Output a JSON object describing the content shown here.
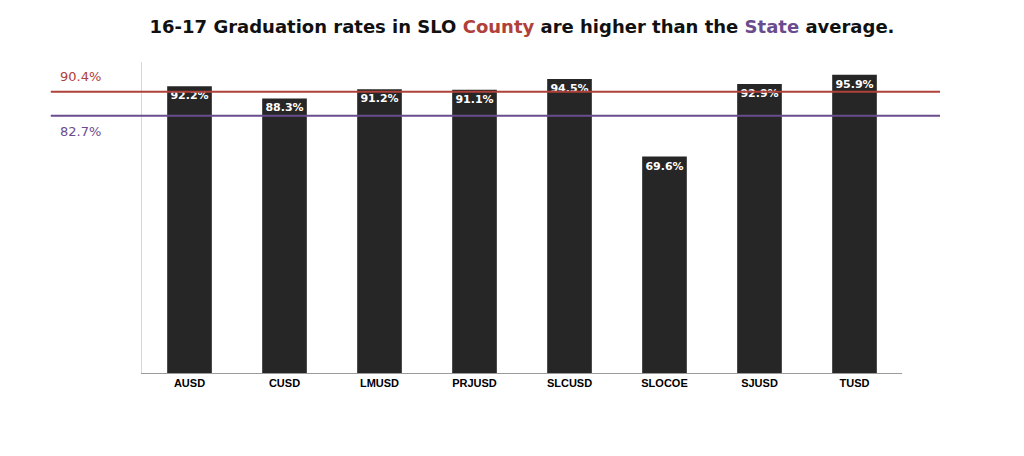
{
  "chart_data": {
    "type": "bar",
    "title": "16-17 Graduation rates in SLO County are higher than the State average.",
    "categories": [
      "AUSD",
      "CUSD",
      "LMUSD",
      "PRJUSD",
      "SLCUSD",
      "SLOCOE",
      "SJUSD",
      "TUSD"
    ],
    "values": [
      92.2,
      88.3,
      91.2,
      91.1,
      94.5,
      69.6,
      92.9,
      95.9
    ],
    "value_labels": [
      "92.2%",
      "88.3%",
      "91.2%",
      "91.1%",
      "94.5%",
      "69.6%",
      "92.9%",
      "95.9%"
    ],
    "color": "#262626",
    "data_labels": true,
    "reference_lines": [
      {
        "name": "County",
        "value": 90.4,
        "label": "90.4%",
        "color": "#b0403a"
      },
      {
        "name": "State",
        "value": 82.7,
        "label": "82.7%",
        "color": "#6a4c8e"
      }
    ],
    "ylim": [
      0,
      100
    ],
    "yticks": [],
    "grid": false,
    "tick_labels": "x"
  }
}
